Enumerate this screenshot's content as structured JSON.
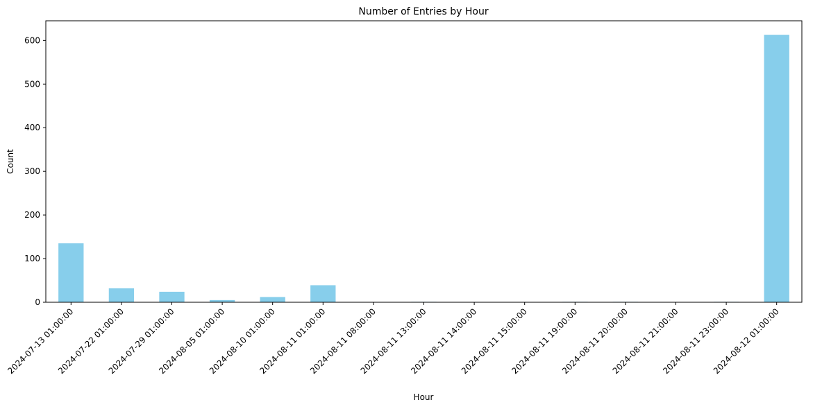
{
  "chart_data": {
    "type": "bar",
    "title": "Number of Entries by Hour",
    "xlabel": "Hour",
    "ylabel": "Count",
    "ylim": [
      0,
      645
    ],
    "yticks": [
      0,
      100,
      200,
      300,
      400,
      500,
      600
    ],
    "categories": [
      "2024-07-13 01:00:00",
      "2024-07-22 01:00:00",
      "2024-07-29 01:00:00",
      "2024-08-05 01:00:00",
      "2024-08-10 01:00:00",
      "2024-08-11 01:00:00",
      "2024-08-11 08:00:00",
      "2024-08-11 13:00:00",
      "2024-08-11 14:00:00",
      "2024-08-11 15:00:00",
      "2024-08-11 19:00:00",
      "2024-08-11 20:00:00",
      "2024-08-11 21:00:00",
      "2024-08-11 23:00:00",
      "2024-08-12 01:00:00"
    ],
    "values": [
      135,
      32,
      24,
      5,
      12,
      39,
      0,
      1,
      0,
      0,
      1,
      1,
      0,
      1,
      613
    ],
    "bar_color": "#87ceeb",
    "grid": false,
    "legend": "none"
  }
}
